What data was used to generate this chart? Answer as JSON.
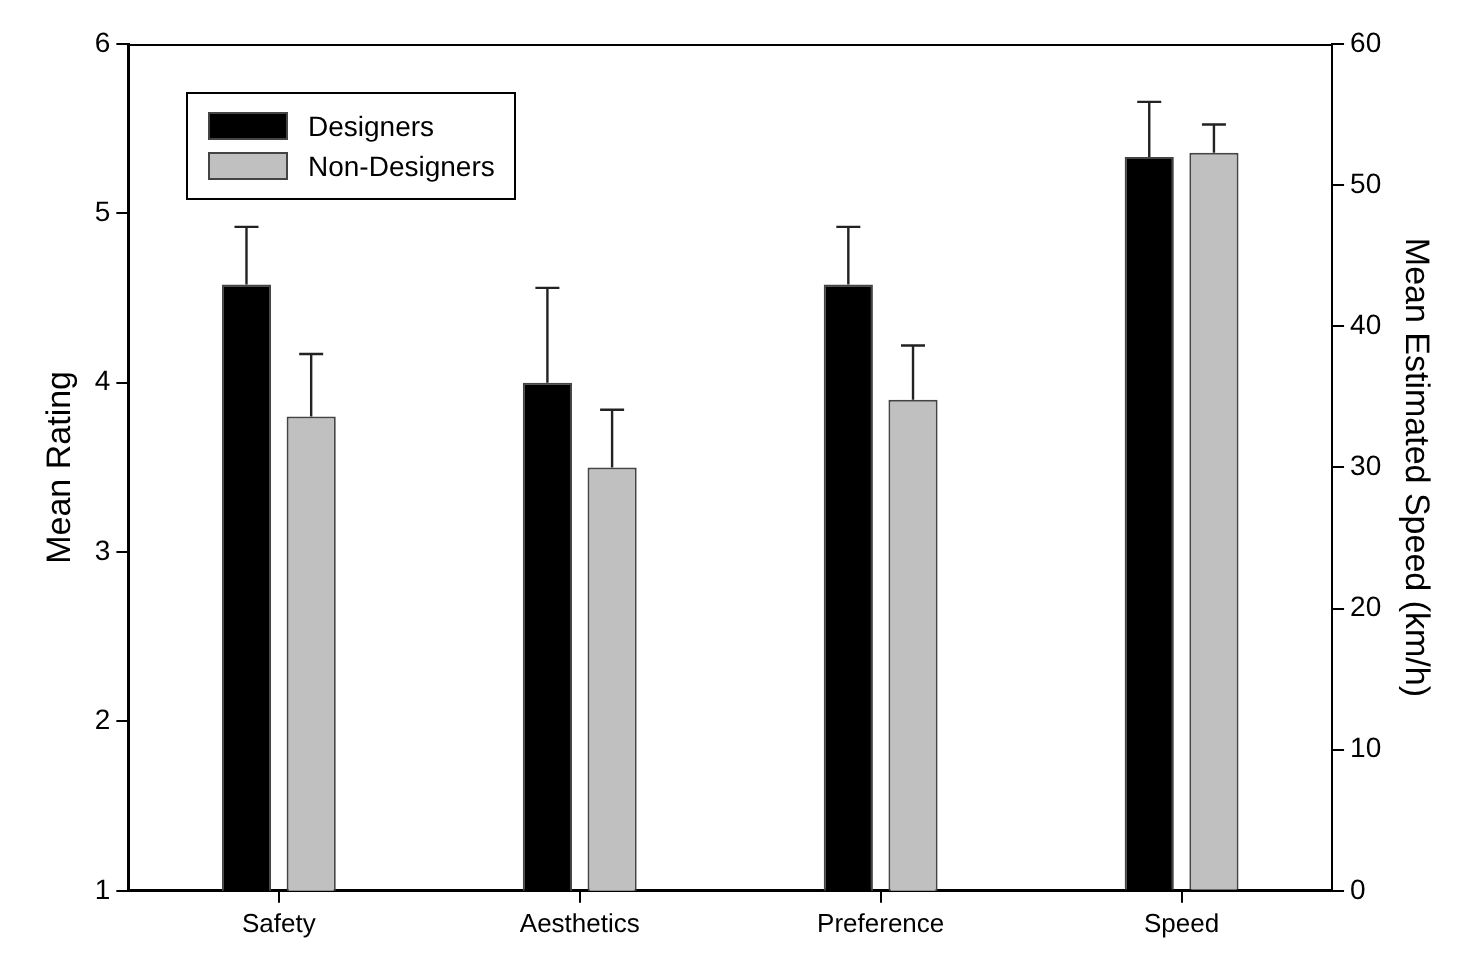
{
  "chart_data": {
    "type": "bar",
    "ylabel": "Mean Rating",
    "y2label": "Mean Estimated Speed (km/h)",
    "categories": [
      "Safety",
      "Aesthetics",
      "Preference",
      "Speed"
    ],
    "series": [
      {
        "name": "Designers",
        "color": "#000000",
        "values": [
          4.58,
          4.0,
          4.58,
          null
        ],
        "errors": [
          [
            4.58,
            4.92
          ],
          [
            4.0,
            4.56
          ],
          [
            4.58,
            4.92
          ],
          null
        ]
      },
      {
        "name": "Non-Designers",
        "color": "#c0c0c0",
        "values": [
          3.8,
          3.5,
          3.9,
          null
        ],
        "errors": [
          [
            3.8,
            4.17
          ],
          [
            3.5,
            3.84
          ],
          [
            3.9,
            4.22
          ],
          null
        ]
      },
      {
        "color": "#000000",
        "axis": "y2",
        "values": [
          null,
          null,
          null,
          52.0
        ],
        "errors": [
          null,
          null,
          null,
          [
            52.0,
            55.9
          ]
        ]
      },
      {
        "color": "#c0c0c0",
        "axis": "y2",
        "values": [
          null,
          null,
          null,
          52.3
        ],
        "errors": [
          null,
          null,
          null,
          [
            52.3,
            54.3
          ]
        ]
      }
    ],
    "ylim": [
      1,
      6
    ],
    "yticks": [
      1,
      2,
      3,
      4,
      5,
      6
    ],
    "y2lim": [
      0,
      60
    ],
    "y2ticks": [
      0,
      10,
      20,
      30,
      40,
      50,
      60
    ],
    "legend": "top left"
  }
}
